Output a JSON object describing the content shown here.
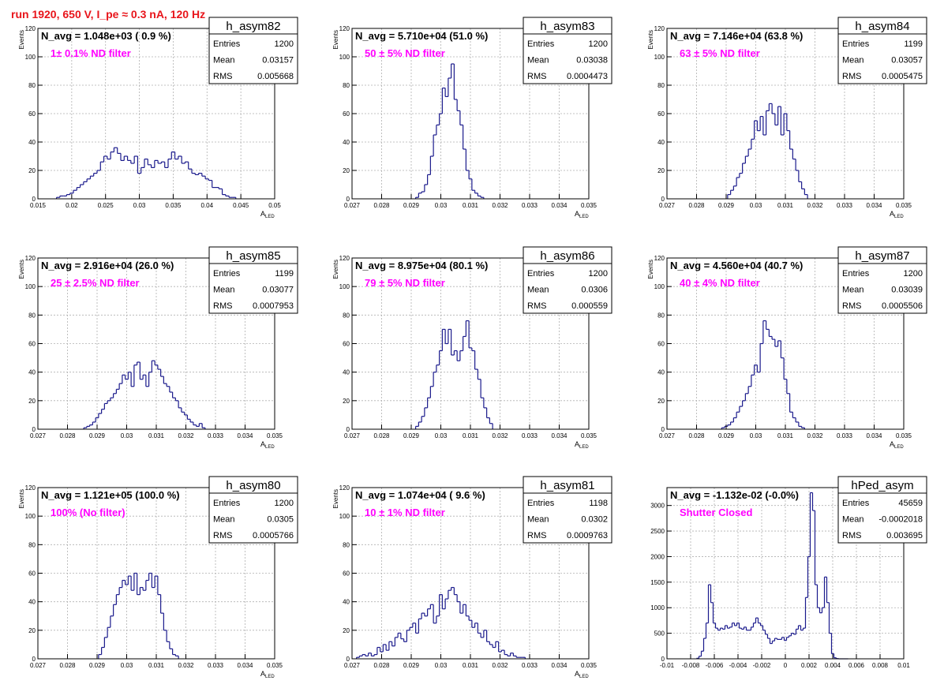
{
  "page": {
    "run_title": "run 1920,   650 V, I_pe ≈ 0.3 nA, 120 Hz"
  },
  "colors": {
    "histogram_line": "#1a1a8c",
    "annotation_magenta": "#ff00ff",
    "title_red": "#e8151b",
    "grid": "#b0b0b0",
    "axis": "#000000"
  },
  "chart_data": [
    {
      "type": "histogram",
      "name": "h_asym82",
      "navg_text": "N_avg = 1.048e+03 ( 0.9 %)",
      "annotation": "1± 0.1% ND filter",
      "stats": {
        "entries": "1200",
        "mean": "0.03157",
        "rms": "0.005668"
      },
      "xlabel": "A",
      "xlabel_sub": "LED",
      "ylabel": "Events",
      "xlim": [
        0.015,
        0.05
      ],
      "ylim": [
        0,
        120
      ],
      "grid": true,
      "xticks": [
        0.015,
        0.02,
        0.025,
        0.03,
        0.035,
        0.04,
        0.045,
        0.05
      ],
      "xtick_labels": [
        "0.015",
        "0.02",
        "0.025",
        "0.03",
        "0.035",
        "0.04",
        "0.045",
        "0.05"
      ],
      "yticks": [
        0,
        20,
        40,
        60,
        80,
        100,
        120
      ],
      "ytick_labels": [
        "0",
        "20",
        "40",
        "60",
        "80",
        "100",
        "120"
      ],
      "bin_width": 0.0005,
      "x": [
        0.018,
        0.0185,
        0.019,
        0.0195,
        0.02,
        0.0205,
        0.021,
        0.0215,
        0.022,
        0.0225,
        0.023,
        0.0235,
        0.024,
        0.0245,
        0.025,
        0.0255,
        0.026,
        0.0265,
        0.027,
        0.0275,
        0.028,
        0.0285,
        0.029,
        0.0295,
        0.03,
        0.0305,
        0.031,
        0.0315,
        0.032,
        0.0325,
        0.033,
        0.0335,
        0.034,
        0.0345,
        0.035,
        0.0355,
        0.036,
        0.0365,
        0.037,
        0.0375,
        0.038,
        0.0385,
        0.039,
        0.0395,
        0.04,
        0.0405,
        0.041,
        0.0415,
        0.042,
        0.0425,
        0.043,
        0.0435,
        0.044
      ],
      "values": [
        1,
        2,
        2,
        3,
        4,
        6,
        8,
        10,
        12,
        14,
        16,
        18,
        20,
        26,
        30,
        28,
        33,
        36,
        32,
        27,
        30,
        27,
        25,
        30,
        18,
        22,
        28,
        24,
        22,
        27,
        25,
        26,
        22,
        28,
        33,
        28,
        30,
        25,
        26,
        21,
        18,
        17,
        18,
        16,
        14,
        13,
        8,
        8,
        7,
        3,
        2,
        1,
        1
      ]
    },
    {
      "type": "histogram",
      "name": "h_asym83",
      "navg_text": "N_avg = 5.710e+04 (51.0 %)",
      "annotation": "50 ± 5% ND filter",
      "stats": {
        "entries": "1200",
        "mean": "0.03038",
        "rms": "0.0004473"
      },
      "xlabel": "A",
      "xlabel_sub": "LED",
      "ylabel": "Events",
      "xlim": [
        0.027,
        0.035
      ],
      "ylim": [
        0,
        120
      ],
      "grid": true,
      "xticks": [
        0.027,
        0.028,
        0.029,
        0.03,
        0.031,
        0.032,
        0.033,
        0.034,
        0.035
      ],
      "xtick_labels": [
        "0.027",
        "0.028",
        "0.029",
        "0.03",
        "0.031",
        "0.032",
        "0.033",
        "0.034",
        "0.035"
      ],
      "yticks": [
        0,
        20,
        40,
        60,
        80,
        100,
        120
      ],
      "ytick_labels": [
        "0",
        "20",
        "40",
        "60",
        "80",
        "100",
        "120"
      ],
      "bin_width": 0.0001,
      "x": [
        0.0292,
        0.0293,
        0.0294,
        0.0295,
        0.0296,
        0.0297,
        0.0298,
        0.0299,
        0.03,
        0.0301,
        0.0302,
        0.0303,
        0.0304,
        0.0305,
        0.0306,
        0.0307,
        0.0308,
        0.0309,
        0.031,
        0.0311,
        0.0312,
        0.0313,
        0.0314
      ],
      "values": [
        1,
        4,
        5,
        10,
        17,
        30,
        45,
        52,
        60,
        78,
        72,
        85,
        95,
        70,
        62,
        52,
        35,
        20,
        14,
        6,
        4,
        2,
        1
      ]
    },
    {
      "type": "histogram",
      "name": "h_asym84",
      "navg_text": "N_avg = 7.146e+04 (63.8 %)",
      "annotation": "63 ± 5% ND filter",
      "stats": {
        "entries": "1199",
        "mean": "0.03057",
        "rms": "0.0005475"
      },
      "xlabel": "A",
      "xlabel_sub": "LED",
      "ylabel": "Events",
      "xlim": [
        0.027,
        0.035
      ],
      "ylim": [
        0,
        120
      ],
      "grid": true,
      "xticks": [
        0.027,
        0.028,
        0.029,
        0.03,
        0.031,
        0.032,
        0.033,
        0.034,
        0.035
      ],
      "xtick_labels": [
        "0.027",
        "0.028",
        "0.029",
        "0.03",
        "0.031",
        "0.032",
        "0.033",
        "0.034",
        "0.035"
      ],
      "yticks": [
        0,
        20,
        40,
        60,
        80,
        100,
        120
      ],
      "ytick_labels": [
        "0",
        "20",
        "40",
        "60",
        "80",
        "100",
        "120"
      ],
      "bin_width": 0.0001,
      "x": [
        0.0291,
        0.0292,
        0.0293,
        0.0294,
        0.0295,
        0.0296,
        0.0297,
        0.0298,
        0.0299,
        0.03,
        0.0301,
        0.0302,
        0.0303,
        0.0304,
        0.0305,
        0.0306,
        0.0307,
        0.0308,
        0.0309,
        0.031,
        0.0311,
        0.0312,
        0.0313,
        0.0314,
        0.0315,
        0.0316,
        0.0317
      ],
      "values": [
        3,
        6,
        9,
        15,
        18,
        25,
        30,
        35,
        42,
        55,
        48,
        58,
        45,
        62,
        67,
        60,
        52,
        65,
        45,
        60,
        48,
        35,
        28,
        20,
        12,
        7,
        3
      ]
    },
    {
      "type": "histogram",
      "name": "h_asym85",
      "navg_text": "N_avg = 2.916e+04 (26.0 %)",
      "annotation": "25 ± 2.5% ND filter",
      "stats": {
        "entries": "1199",
        "mean": "0.03077",
        "rms": "0.0007953"
      },
      "xlabel": "A",
      "xlabel_sub": "LED",
      "ylabel": "Events",
      "xlim": [
        0.027,
        0.035
      ],
      "ylim": [
        0,
        120
      ],
      "grid": true,
      "xticks": [
        0.027,
        0.028,
        0.029,
        0.03,
        0.031,
        0.032,
        0.033,
        0.034,
        0.035
      ],
      "xtick_labels": [
        "0.027",
        "0.028",
        "0.029",
        "0.03",
        "0.031",
        "0.032",
        "0.033",
        "0.034",
        "0.035"
      ],
      "yticks": [
        0,
        20,
        40,
        60,
        80,
        100,
        120
      ],
      "ytick_labels": [
        "0",
        "20",
        "40",
        "60",
        "80",
        "100",
        "120"
      ],
      "bin_width": 0.0001,
      "x": [
        0.0286,
        0.0287,
        0.0288,
        0.0289,
        0.029,
        0.0291,
        0.0292,
        0.0293,
        0.0294,
        0.0295,
        0.0296,
        0.0297,
        0.0298,
        0.0299,
        0.03,
        0.0301,
        0.0302,
        0.0303,
        0.0304,
        0.0305,
        0.0306,
        0.0307,
        0.0308,
        0.0309,
        0.031,
        0.0311,
        0.0312,
        0.0313,
        0.0314,
        0.0315,
        0.0316,
        0.0317,
        0.0318,
        0.0319,
        0.032,
        0.0321,
        0.0322,
        0.0323,
        0.0324,
        0.0325,
        0.0326
      ],
      "values": [
        1,
        2,
        3,
        5,
        8,
        11,
        14,
        18,
        20,
        22,
        25,
        28,
        32,
        38,
        35,
        40,
        30,
        45,
        47,
        35,
        38,
        30,
        40,
        48,
        45,
        42,
        37,
        32,
        30,
        26,
        22,
        20,
        15,
        12,
        10,
        7,
        5,
        3,
        2,
        4,
        1
      ]
    },
    {
      "type": "histogram",
      "name": "h_asym86",
      "navg_text": "N_avg = 8.975e+04 (80.1 %)",
      "annotation": "79 ± 5% ND filter",
      "stats": {
        "entries": "1200",
        "mean": "0.0306",
        "rms": "0.000559"
      },
      "xlabel": "A",
      "xlabel_sub": "LED",
      "ylabel": "Events",
      "xlim": [
        0.027,
        0.035
      ],
      "ylim": [
        0,
        120
      ],
      "grid": true,
      "xticks": [
        0.027,
        0.028,
        0.029,
        0.03,
        0.031,
        0.032,
        0.033,
        0.034,
        0.035
      ],
      "xtick_labels": [
        "0.027",
        "0.028",
        "0.029",
        "0.03",
        "0.031",
        "0.032",
        "0.033",
        "0.034",
        "0.035"
      ],
      "yticks": [
        0,
        20,
        40,
        60,
        80,
        100,
        120
      ],
      "ytick_labels": [
        "0",
        "20",
        "40",
        "60",
        "80",
        "100",
        "120"
      ],
      "bin_width": 0.0001,
      "x": [
        0.0292,
        0.0293,
        0.0294,
        0.0295,
        0.0296,
        0.0297,
        0.0298,
        0.0299,
        0.03,
        0.0301,
        0.0302,
        0.0303,
        0.0304,
        0.0305,
        0.0306,
        0.0307,
        0.0308,
        0.0309,
        0.031,
        0.0311,
        0.0312,
        0.0313,
        0.0314,
        0.0315,
        0.0316,
        0.0317
      ],
      "values": [
        2,
        5,
        9,
        15,
        22,
        30,
        40,
        45,
        55,
        70,
        60,
        70,
        52,
        55,
        48,
        55,
        65,
        76,
        57,
        55,
        42,
        35,
        22,
        15,
        8,
        4
      ]
    },
    {
      "type": "histogram",
      "name": "h_asym87",
      "navg_text": "N_avg = 4.560e+04 (40.7 %)",
      "annotation": "40 ± 4% ND filter",
      "stats": {
        "entries": "1200",
        "mean": "0.03039",
        "rms": "0.0005506"
      },
      "xlabel": "A",
      "xlabel_sub": "LED",
      "ylabel": "Events",
      "xlim": [
        0.027,
        0.035
      ],
      "ylim": [
        0,
        120
      ],
      "grid": true,
      "xticks": [
        0.027,
        0.028,
        0.029,
        0.03,
        0.031,
        0.032,
        0.033,
        0.034,
        0.035
      ],
      "xtick_labels": [
        "0.027",
        "0.028",
        "0.029",
        "0.03",
        "0.031",
        "0.032",
        "0.033",
        "0.034",
        "0.035"
      ],
      "yticks": [
        0,
        20,
        40,
        60,
        80,
        100,
        120
      ],
      "ytick_labels": [
        "0",
        "20",
        "40",
        "60",
        "80",
        "100",
        "120"
      ],
      "bin_width": 0.0001,
      "x": [
        0.0289,
        0.029,
        0.0291,
        0.0292,
        0.0293,
        0.0294,
        0.0295,
        0.0296,
        0.0297,
        0.0298,
        0.0299,
        0.03,
        0.0301,
        0.0302,
        0.0303,
        0.0304,
        0.0305,
        0.0306,
        0.0307,
        0.0308,
        0.0309,
        0.031,
        0.0311,
        0.0312,
        0.0313,
        0.0314,
        0.0315,
        0.0316
      ],
      "values": [
        1,
        2,
        3,
        5,
        8,
        12,
        16,
        20,
        25,
        30,
        38,
        45,
        40,
        60,
        76,
        70,
        65,
        63,
        58,
        62,
        50,
        35,
        25,
        12,
        8,
        5,
        2,
        1
      ]
    },
    {
      "type": "histogram",
      "name": "h_asym80",
      "navg_text": "N_avg = 1.121e+05 (100.0 %)",
      "annotation": "100% (No filter)",
      "stats": {
        "entries": "1200",
        "mean": "0.0305",
        "rms": "0.0005766"
      },
      "xlabel": "A",
      "xlabel_sub": "LED",
      "ylabel": "Events",
      "xlim": [
        0.027,
        0.035
      ],
      "ylim": [
        0,
        120
      ],
      "grid": true,
      "xticks": [
        0.027,
        0.028,
        0.029,
        0.03,
        0.031,
        0.032,
        0.033,
        0.034,
        0.035
      ],
      "xtick_labels": [
        "0.027",
        "0.028",
        "0.029",
        "0.03",
        "0.031",
        "0.032",
        "0.033",
        "0.034",
        "0.035"
      ],
      "yticks": [
        0,
        20,
        40,
        60,
        80,
        100,
        120
      ],
      "ytick_labels": [
        "0",
        "20",
        "40",
        "60",
        "80",
        "100",
        "120"
      ],
      "bin_width": 0.0001,
      "x": [
        0.0291,
        0.0292,
        0.0293,
        0.0294,
        0.0295,
        0.0296,
        0.0297,
        0.0298,
        0.0299,
        0.03,
        0.0301,
        0.0302,
        0.0303,
        0.0304,
        0.0305,
        0.0306,
        0.0307,
        0.0308,
        0.0309,
        0.031,
        0.0311,
        0.0312,
        0.0313,
        0.0314,
        0.0315,
        0.0316,
        0.0317
      ],
      "values": [
        3,
        8,
        15,
        22,
        30,
        38,
        45,
        50,
        55,
        52,
        58,
        48,
        60,
        45,
        50,
        48,
        55,
        60,
        50,
        58,
        45,
        32,
        20,
        12,
        7,
        3,
        2
      ]
    },
    {
      "type": "histogram",
      "name": "h_asym81",
      "navg_text": "N_avg = 1.074e+04 ( 9.6 %)",
      "annotation": "10 ± 1% ND filter",
      "stats": {
        "entries": "1198",
        "mean": "0.0302",
        "rms": "0.0009763"
      },
      "xlabel": "A",
      "xlabel_sub": "LED",
      "ylabel": "Events",
      "xlim": [
        0.027,
        0.035
      ],
      "ylim": [
        0,
        120
      ],
      "grid": true,
      "xticks": [
        0.027,
        0.028,
        0.029,
        0.03,
        0.031,
        0.032,
        0.033,
        0.034,
        0.035
      ],
      "xtick_labels": [
        "0.027",
        "0.028",
        "0.029",
        "0.03",
        "0.031",
        "0.032",
        "0.033",
        "0.034",
        "0.035"
      ],
      "yticks": [
        0,
        20,
        40,
        60,
        80,
        100,
        120
      ],
      "ytick_labels": [
        "0",
        "20",
        "40",
        "60",
        "80",
        "100",
        "120"
      ],
      "bin_width": 0.0001,
      "x": [
        0.0272,
        0.0273,
        0.0274,
        0.0275,
        0.0276,
        0.0277,
        0.0278,
        0.0279,
        0.028,
        0.0281,
        0.0282,
        0.0283,
        0.0284,
        0.0285,
        0.0286,
        0.0287,
        0.0288,
        0.0289,
        0.029,
        0.0291,
        0.0292,
        0.0293,
        0.0294,
        0.0295,
        0.0296,
        0.0297,
        0.0298,
        0.0299,
        0.03,
        0.0301,
        0.0302,
        0.0303,
        0.0304,
        0.0305,
        0.0306,
        0.0307,
        0.0308,
        0.0309,
        0.031,
        0.0311,
        0.0312,
        0.0313,
        0.0314,
        0.0315,
        0.0316,
        0.0317,
        0.0318,
        0.0319,
        0.032,
        0.0321,
        0.0322,
        0.0323,
        0.0324,
        0.0325,
        0.0326,
        0.0327,
        0.0328
      ],
      "values": [
        1,
        2,
        3,
        2,
        4,
        2,
        3,
        8,
        5,
        10,
        6,
        12,
        9,
        15,
        18,
        14,
        12,
        20,
        22,
        25,
        18,
        28,
        32,
        30,
        35,
        38,
        25,
        30,
        45,
        35,
        42,
        48,
        50,
        45,
        40,
        32,
        38,
        30,
        27,
        22,
        25,
        18,
        15,
        20,
        12,
        10,
        8,
        12,
        5,
        6,
        3,
        2,
        4,
        2,
        1,
        1,
        1
      ]
    },
    {
      "type": "histogram",
      "name": "hPed_asym",
      "navg_text": "N_avg = -1.132e-02 (-0.0%)",
      "annotation": "Shutter Closed",
      "stats": {
        "entries": "45659",
        "mean": "-0.0002018",
        "rms": "0.003695"
      },
      "xlabel": "",
      "xlabel_sub": "",
      "ylabel": "",
      "xlim": [
        -0.01,
        0.01
      ],
      "ylim": [
        0,
        3350
      ],
      "grid": true,
      "xticks": [
        -0.01,
        -0.008,
        -0.006,
        -0.004,
        -0.002,
        0,
        0.002,
        0.004,
        0.006,
        0.008,
        0.01
      ],
      "xtick_labels": [
        "-0.01",
        "-0.008",
        "-0.006",
        "-0.004",
        "-0.002",
        "0",
        "0.002",
        "0.004",
        "0.006",
        "0.008",
        "0.01"
      ],
      "yticks": [
        0,
        500,
        1000,
        1500,
        2000,
        2500,
        3000
      ],
      "ytick_labels": [
        "0",
        "500",
        "1000",
        "1500",
        "2000",
        "2500",
        "3000"
      ],
      "bin_width": 0.0002,
      "x": [
        -0.0074,
        -0.0072,
        -0.007,
        -0.0068,
        -0.0066,
        -0.0064,
        -0.0062,
        -0.006,
        -0.0058,
        -0.0056,
        -0.0054,
        -0.0052,
        -0.005,
        -0.0048,
        -0.0046,
        -0.0044,
        -0.0042,
        -0.004,
        -0.0038,
        -0.0036,
        -0.0034,
        -0.0032,
        -0.003,
        -0.0028,
        -0.0026,
        -0.0024,
        -0.0022,
        -0.002,
        -0.0018,
        -0.0016,
        -0.0014,
        -0.0012,
        -0.001,
        -0.0008,
        -0.0006,
        -0.0004,
        -0.0002,
        0,
        0.0002,
        0.0004,
        0.0006,
        0.0008,
        0.001,
        0.0012,
        0.0014,
        0.0016,
        0.0018,
        0.002,
        0.0022,
        0.0024,
        0.0026,
        0.0028,
        0.003,
        0.0032,
        0.0034,
        0.0036,
        0.0038,
        0.004,
        0.0042,
        0.0044,
        0.0046,
        0.0048,
        0.005,
        0.0052
      ],
      "values": [
        10,
        50,
        150,
        400,
        700,
        1450,
        1100,
        700,
        600,
        560,
        600,
        580,
        650,
        600,
        620,
        700,
        650,
        700,
        600,
        580,
        620,
        560,
        560,
        620,
        700,
        800,
        700,
        650,
        560,
        480,
        400,
        300,
        350,
        400,
        380,
        380,
        420,
        360,
        420,
        450,
        500,
        480,
        580,
        650,
        560,
        600,
        1200,
        2000,
        3250,
        2900,
        1450,
        1000,
        900,
        1000,
        1600,
        1100,
        500,
        100,
        20,
        5,
        0,
        0,
        0,
        0
      ]
    }
  ]
}
